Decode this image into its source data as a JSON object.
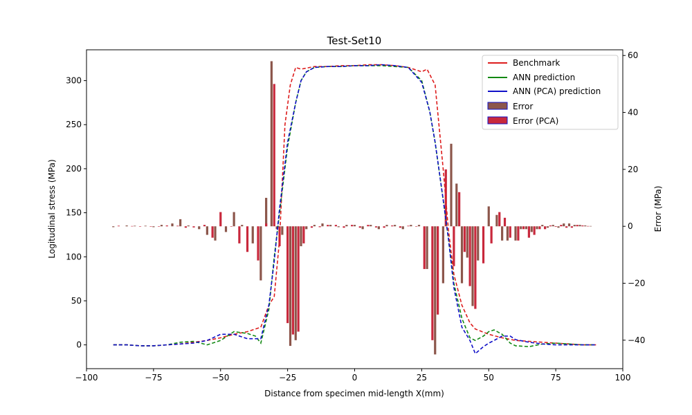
{
  "chart_data": {
    "type": "line",
    "title": "Test-Set10",
    "xlabel": "Distance from specimen mid-length X(mm)",
    "ylabel": "Logitudinal stress (MPa)",
    "y2label": "Error (MPa)",
    "xlim": [
      -100,
      100
    ],
    "ylim": [
      -27,
      335
    ],
    "y2lim": [
      -50,
      62
    ],
    "xticks": [
      -100,
      -75,
      -50,
      -25,
      0,
      25,
      50,
      75,
      100
    ],
    "yticks": [
      0,
      50,
      100,
      150,
      200,
      250,
      300
    ],
    "y2ticks": [
      -40,
      -20,
      0,
      20,
      40,
      60
    ],
    "grid": false,
    "legend_position": "top-right",
    "colors": {
      "benchmark": "#dd1c1c",
      "ann": "#118811",
      "ann_pca": "#1010c8",
      "error": "#8c564b",
      "error_pca": "#c8283c",
      "error_edge": "#1010c8"
    },
    "series": [
      {
        "name": "Benchmark",
        "style": "dashed",
        "x": [
          -90,
          -85,
          -80,
          -75,
          -70,
          -65,
          -60,
          -55,
          -50,
          -45,
          -40,
          -35,
          -32,
          -30,
          -28,
          -26,
          -24,
          -22,
          -20,
          -15,
          -10,
          -5,
          0,
          5,
          10,
          15,
          20,
          25,
          27,
          30,
          33,
          35,
          37,
          40,
          43,
          45,
          50,
          55,
          60,
          65,
          70,
          75,
          80,
          85,
          90
        ],
        "values": [
          0,
          0,
          -1,
          -1,
          0,
          1,
          3,
          5,
          8,
          12,
          15,
          20,
          45,
          55,
          120,
          250,
          295,
          315,
          313,
          316,
          316,
          317,
          317,
          318,
          318,
          317,
          315,
          310,
          313,
          295,
          200,
          130,
          80,
          45,
          25,
          18,
          12,
          8,
          5,
          4,
          3,
          2,
          1,
          0,
          0
        ]
      },
      {
        "name": "ANN prediction",
        "style": "dashed",
        "x": [
          -90,
          -85,
          -80,
          -75,
          -70,
          -65,
          -60,
          -55,
          -50,
          -45,
          -40,
          -37,
          -35,
          -32,
          -30,
          -28,
          -25,
          -22,
          -20,
          -18,
          -15,
          -10,
          -5,
          0,
          5,
          10,
          15,
          20,
          25,
          28,
          30,
          33,
          35,
          37,
          40,
          43,
          45,
          48,
          50,
          52,
          55,
          58,
          60,
          65,
          70,
          75,
          80,
          85,
          90
        ],
        "values": [
          0,
          0,
          -1,
          -1,
          0,
          3,
          4,
          0,
          5,
          15,
          13,
          10,
          2,
          40,
          100,
          150,
          225,
          275,
          300,
          310,
          315,
          316,
          316,
          317,
          317,
          317,
          316,
          315,
          300,
          265,
          230,
          165,
          120,
          70,
          30,
          8,
          5,
          10,
          15,
          17,
          12,
          2,
          -1,
          -2,
          1,
          2,
          1,
          0,
          0
        ]
      },
      {
        "name": "ANN (PCA) prediction",
        "style": "dashed",
        "x": [
          -90,
          -85,
          -80,
          -75,
          -70,
          -65,
          -60,
          -55,
          -50,
          -45,
          -40,
          -35,
          -32,
          -30,
          -28,
          -25,
          -22,
          -20,
          -18,
          -15,
          -10,
          -5,
          0,
          5,
          10,
          15,
          20,
          25,
          28,
          30,
          33,
          35,
          37,
          40,
          43,
          45,
          48,
          50,
          52,
          55,
          58,
          60,
          65,
          70,
          75,
          80,
          85,
          90
        ],
        "values": [
          0,
          0,
          -1,
          -1,
          0,
          1,
          2,
          5,
          12,
          12,
          7,
          7,
          45,
          95,
          155,
          230,
          275,
          300,
          310,
          315,
          316,
          316,
          317,
          317,
          318,
          317,
          315,
          298,
          265,
          230,
          165,
          120,
          65,
          20,
          5,
          -10,
          -2,
          2,
          5,
          10,
          10,
          6,
          3,
          1,
          0,
          0,
          0,
          0
        ]
      }
    ],
    "error_bars": {
      "Error": {
        "x": [
          -90,
          -85,
          -82,
          -78,
          -75,
          -72,
          -68,
          -65,
          -62,
          -58,
          -55,
          -52,
          -48,
          -45,
          -42,
          -38,
          -35,
          -33,
          -31,
          -29,
          -27,
          -24,
          -22,
          -20,
          -18,
          -15,
          -12,
          -9,
          -6,
          -3,
          0,
          3,
          6,
          9,
          12,
          15,
          18,
          21,
          24,
          27,
          30,
          33,
          36,
          38,
          40,
          42,
          44,
          46,
          50,
          53,
          55,
          57,
          60,
          62,
          64,
          66,
          68,
          70,
          72,
          74,
          76,
          78,
          80,
          82,
          84,
          86,
          88
        ],
        "values": [
          -0.3,
          0.3,
          0.2,
          0.2,
          -0.3,
          0.5,
          1,
          2.5,
          0.3,
          -1,
          -3,
          -5,
          -2,
          5,
          0.5,
          -6,
          -19,
          10,
          58,
          -1,
          -3,
          -42,
          -40,
          -7,
          -1,
          0.5,
          1,
          0.5,
          -0.3,
          0.5,
          0.5,
          -1,
          0.5,
          -1,
          0.5,
          0.5,
          -1,
          0.5,
          0.5,
          -15,
          -45,
          -20,
          29,
          15,
          -20,
          -11,
          -28,
          -12,
          7,
          4,
          -5,
          -5,
          -5,
          -1,
          -1,
          -2,
          -1,
          0.5,
          -0.5,
          0.5,
          -0.5,
          1,
          1,
          0.5,
          0.5,
          0.3,
          0.1
        ]
      },
      "Error (PCA)": {
        "x": [
          -88,
          -83,
          -80,
          -76,
          -73,
          -70,
          -66,
          -63,
          -60,
          -56,
          -53,
          -50,
          -46,
          -43,
          -40,
          -36,
          -33,
          -30,
          -28,
          -25,
          -23,
          -21,
          -19,
          -16,
          -13,
          -10,
          -7,
          -4,
          -1,
          2,
          5,
          8,
          11,
          14,
          17,
          20,
          23,
          26,
          29,
          31,
          34,
          37,
          39,
          41,
          43,
          45,
          48,
          51,
          54,
          56,
          58,
          61,
          63,
          65,
          67,
          69,
          71,
          73,
          75,
          77,
          79,
          81,
          83,
          85,
          87
        ],
        "values": [
          0.2,
          0.1,
          0,
          0,
          0,
          0.3,
          0.2,
          -0.5,
          -0.4,
          0.5,
          -4,
          5,
          0,
          -6,
          -9,
          -12,
          1,
          50,
          -7,
          -34,
          -38,
          -37,
          -6,
          -0.5,
          -0.3,
          0.5,
          0.5,
          -0.5,
          0.5,
          -0.5,
          0.5,
          -0.4,
          -0.5,
          0.3,
          -0.5,
          0.2,
          -0.1,
          -15,
          -40,
          -31,
          20,
          -14,
          12,
          -9,
          -21,
          -29,
          -13,
          -6,
          5,
          3,
          -4,
          -5,
          -1,
          -4,
          -3,
          -1,
          -1,
          0.3,
          -0.2,
          0.5,
          -0.5,
          -0.5,
          0.5,
          0.3,
          0.1
        ]
      }
    }
  }
}
